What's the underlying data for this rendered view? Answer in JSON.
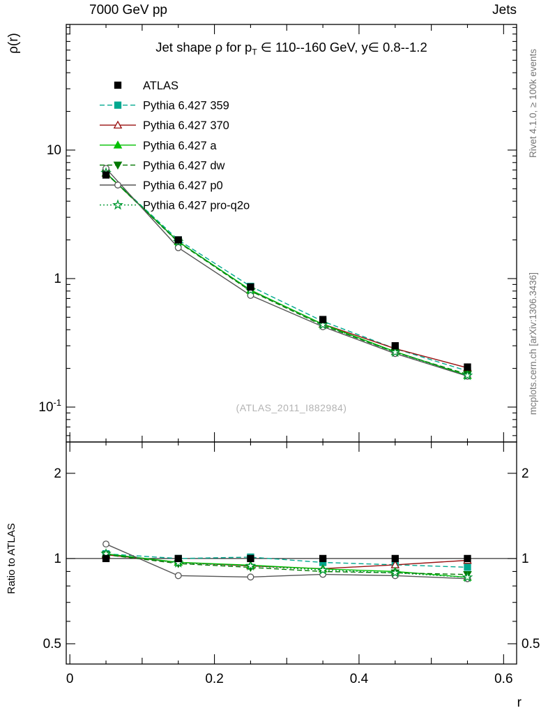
{
  "header": {
    "left": "7000 GeV pp",
    "right": "Jets"
  },
  "side_captions": {
    "rivet": "Rivet 4.1.0, ≥ 100k events",
    "mcplots": "mcplots.cern.ch [arXiv:1306.3436]"
  },
  "title": {
    "pre": "Jet shape ρ for p",
    "sub": "T",
    "post": " ∈ 110--160 GeV, y∈ 0.8--1.2"
  },
  "watermark": "(ATLAS_2011_I882984)",
  "axes": {
    "ylabel_main": "ρ(r)",
    "ylabel_ratio": "Ratio to ATLAS",
    "xlabel": "r"
  },
  "chart_data": {
    "type": "line",
    "title": "Jet shape ρ for p_T ∈ 110--160 GeV, y∈ 0.8--1.2",
    "x": [
      0.05,
      0.15,
      0.25,
      0.35,
      0.45,
      0.55
    ],
    "xlabel": "r",
    "xlim": [
      -0.005,
      0.618
    ],
    "xticks_labeled": [
      0,
      0.2,
      0.4,
      0.6
    ],
    "xtick_labels": [
      "0",
      "0.2",
      "0.4",
      "0.6"
    ],
    "main_panel": {
      "ylabel": "ρ(r)",
      "yscale": "log",
      "ylim": [
        0.0535,
        95
      ],
      "yticks": [
        10,
        1,
        0.1
      ],
      "ytick_labels": [
        "10",
        "1",
        "10^-1"
      ]
    },
    "ratio_panel": {
      "ylabel": "Ratio to ATLAS",
      "yscale": "log",
      "ylim": [
        0.424,
        2.58
      ],
      "yticks": [
        2,
        1,
        0.5
      ],
      "ytick_labels": [
        "2",
        "1",
        "0.5"
      ],
      "reference": "ATLAS",
      "reference_value": 1
    },
    "legend_position": "top-left",
    "series": [
      {
        "name": "ATLAS",
        "color": "#000000",
        "marker": "square",
        "fill": true,
        "line": "none",
        "values": [
          6.4,
          2.0,
          0.86,
          0.48,
          0.3,
          0.205
        ]
      },
      {
        "name": "Pythia 6.427 359",
        "color": "#00a88f",
        "marker": "square",
        "fill": true,
        "line": "dashed",
        "values": [
          6.65,
          2.0,
          0.87,
          0.465,
          0.285,
          0.191
        ]
      },
      {
        "name": "Pythia 6.427 370",
        "color": "#991111",
        "marker": "triangle-up",
        "fill": false,
        "line": "solid",
        "values": [
          6.6,
          1.94,
          0.81,
          0.442,
          0.285,
          0.202
        ]
      },
      {
        "name": "Pythia 6.427 a",
        "color": "#00c000",
        "marker": "triangle-up",
        "fill": true,
        "line": "solid",
        "values": [
          6.65,
          1.94,
          0.815,
          0.441,
          0.27,
          0.176
        ]
      },
      {
        "name": "Pythia 6.427 dw",
        "color": "#007700",
        "marker": "triangle-down",
        "fill": true,
        "line": "dashed",
        "values": [
          6.6,
          1.92,
          0.8,
          0.432,
          0.267,
          0.18
        ]
      },
      {
        "name": "Pythia 6.427 p0",
        "color": "#555555",
        "marker": "circle",
        "fill": false,
        "line": "solid",
        "values": [
          7.2,
          1.74,
          0.74,
          0.422,
          0.261,
          0.174
        ]
      },
      {
        "name": "Pythia 6.427 pro-q2o",
        "color": "#009933",
        "marker": "star",
        "fill": false,
        "line": "dotted",
        "values": [
          6.65,
          1.93,
          0.81,
          0.437,
          0.267,
          0.176
        ]
      }
    ]
  }
}
